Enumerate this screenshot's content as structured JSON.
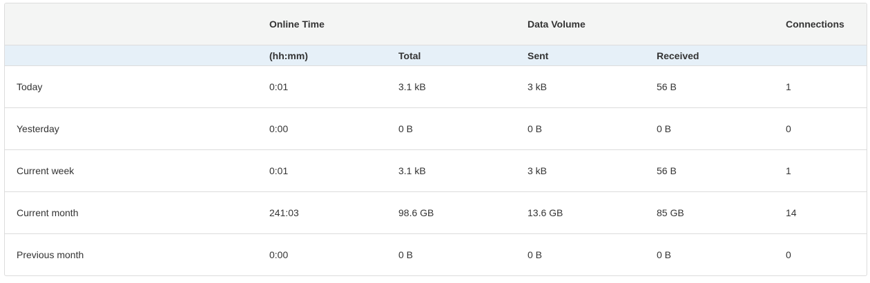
{
  "header_top": [
    "",
    "Online Time",
    "",
    "Data Volume",
    "",
    "Connections"
  ],
  "header_sub": [
    "",
    "(hh:mm)",
    "Total",
    "Sent",
    "Received",
    ""
  ],
  "rows": [
    [
      "Today",
      "0:01",
      "3.1 kB",
      "3 kB",
      "56 B",
      "1"
    ],
    [
      "Yesterday",
      "0:00",
      "0 B",
      "0 B",
      "0 B",
      "0"
    ],
    [
      "Current week",
      "0:01",
      "3.1 kB",
      "3 kB",
      "56 B",
      "1"
    ],
    [
      "Current month",
      "241:03",
      "98.6 GB",
      "13.6 GB",
      "85 GB",
      "14"
    ],
    [
      "Previous month",
      "0:00",
      "0 B",
      "0 B",
      "0 B",
      "0"
    ]
  ]
}
